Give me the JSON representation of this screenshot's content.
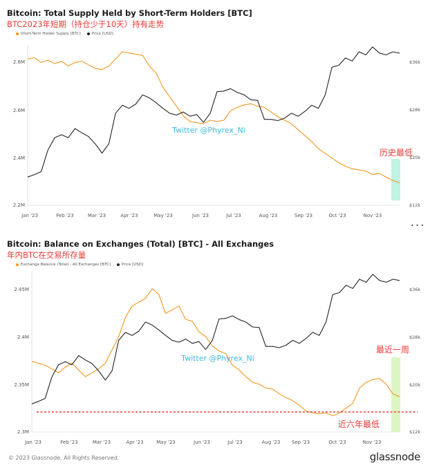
{
  "footer": {
    "copyright": "© 2023 Glassnode. All Rights Reserved.",
    "brand": "glassnode"
  },
  "watermark": "Twitter @Phyrex_Ni",
  "colors": {
    "orange": "#f0961e",
    "black": "#222222",
    "annot_red": "#e53935",
    "highlight": "#b7f0dd",
    "highlight2": "#d6f5b8",
    "watermark": "#3bb9e3"
  },
  "chart_data": [
    {
      "type": "line",
      "title": "Bitcoin: Total Supply Held by Short-Term Holders [BTC]",
      "subtitle": "BTC2023年短期（持仓少于10天）持有走势",
      "legend": [
        "Short-Term Holder Supply [BTC]",
        "Price [USD]"
      ],
      "x_ticks": [
        "Jan '23",
        "Feb '23",
        "Mar '23",
        "Apr '23",
        "May '23",
        "Jun '23",
        "Jul '23",
        "Aug '23",
        "Sep '23",
        "Oct '23",
        "Nov '23"
      ],
      "y_left_ticks": [
        "2.8M",
        "2.6M",
        "2.4M",
        "2.2M"
      ],
      "y_right_ticks": [
        "$36k",
        "$28k",
        "$20k",
        "$12k"
      ],
      "y_left_range": [
        2200000,
        2850000
      ],
      "y_right_range": [
        12000,
        37000
      ],
      "annotation": "历史最低",
      "series": [
        {
          "name": "Short-Term Holder Supply [BTC]",
          "color": "#f0961e",
          "points": [
            [
              0,
              2820000
            ],
            [
              6,
              2825000
            ],
            [
              12,
              2805000
            ],
            [
              18,
              2815000
            ],
            [
              24,
              2800000
            ],
            [
              30,
              2810000
            ],
            [
              36,
              2790000
            ],
            [
              42,
              2805000
            ],
            [
              48,
              2810000
            ],
            [
              54,
              2795000
            ],
            [
              60,
              2780000
            ],
            [
              66,
              2775000
            ],
            [
              72,
              2790000
            ],
            [
              78,
              2820000
            ],
            [
              84,
              2850000
            ],
            [
              90,
              2845000
            ],
            [
              96,
              2840000
            ],
            [
              102,
              2835000
            ],
            [
              108,
              2790000
            ],
            [
              114,
              2760000
            ],
            [
              120,
              2700000
            ],
            [
              126,
              2660000
            ],
            [
              132,
              2620000
            ],
            [
              138,
              2580000
            ],
            [
              144,
              2555000
            ],
            [
              150,
              2550000
            ],
            [
              156,
              2545000
            ],
            [
              162,
              2560000
            ],
            [
              168,
              2555000
            ],
            [
              174,
              2560000
            ],
            [
              180,
              2600000
            ],
            [
              186,
              2615000
            ],
            [
              192,
              2625000
            ],
            [
              198,
              2630000
            ],
            [
              204,
              2620000
            ],
            [
              210,
              2615000
            ],
            [
              216,
              2595000
            ],
            [
              222,
              2575000
            ],
            [
              228,
              2560000
            ],
            [
              234,
              2545000
            ],
            [
              240,
              2520000
            ],
            [
              246,
              2495000
            ],
            [
              252,
              2470000
            ],
            [
              258,
              2440000
            ],
            [
              264,
              2420000
            ],
            [
              270,
              2400000
            ],
            [
              276,
              2380000
            ],
            [
              282,
              2365000
            ],
            [
              288,
              2355000
            ],
            [
              294,
              2350000
            ],
            [
              300,
              2345000
            ],
            [
              306,
              2330000
            ],
            [
              312,
              2335000
            ],
            [
              318,
              2320000
            ],
            [
              324,
              2305000
            ],
            [
              330,
              2295000
            ]
          ]
        },
        {
          "name": "Price [USD]",
          "color": "#222222",
          "points": [
            [
              0,
              16600
            ],
            [
              6,
              17000
            ],
            [
              12,
              17500
            ],
            [
              18,
              21000
            ],
            [
              24,
              23000
            ],
            [
              30,
              23500
            ],
            [
              36,
              23000
            ],
            [
              42,
              24500
            ],
            [
              48,
              23800
            ],
            [
              54,
              23200
            ],
            [
              60,
              22000
            ],
            [
              66,
              20500
            ],
            [
              72,
              22000
            ],
            [
              78,
              27000
            ],
            [
              84,
              28300
            ],
            [
              90,
              27800
            ],
            [
              96,
              28500
            ],
            [
              102,
              30000
            ],
            [
              108,
              29500
            ],
            [
              114,
              28700
            ],
            [
              120,
              27800
            ],
            [
              126,
              27000
            ],
            [
              132,
              26700
            ],
            [
              138,
              27200
            ],
            [
              144,
              26500
            ],
            [
              150,
              26800
            ],
            [
              156,
              25500
            ],
            [
              162,
              27000
            ],
            [
              168,
              30500
            ],
            [
              174,
              30600
            ],
            [
              180,
              31000
            ],
            [
              186,
              30400
            ],
            [
              192,
              30000
            ],
            [
              198,
              29200
            ],
            [
              204,
              29100
            ],
            [
              210,
              26000
            ],
            [
              216,
              26000
            ],
            [
              222,
              25800
            ],
            [
              228,
              26200
            ],
            [
              234,
              27000
            ],
            [
              240,
              26500
            ],
            [
              246,
              27300
            ],
            [
              252,
              28300
            ],
            [
              258,
              27800
            ],
            [
              264,
              30000
            ],
            [
              270,
              34500
            ],
            [
              276,
              34800
            ],
            [
              282,
              36000
            ],
            [
              288,
              35500
            ],
            [
              294,
              37000
            ],
            [
              300,
              36500
            ],
            [
              306,
              37800
            ],
            [
              312,
              36800
            ],
            [
              318,
              36500
            ],
            [
              324,
              37000
            ],
            [
              330,
              36800
            ]
          ]
        }
      ]
    },
    {
      "type": "line",
      "title": "Bitcoin: Balance on Exchanges (Total) [BTC] - All Exchanges",
      "subtitle": "年内BTC在交易所存量",
      "legend": [
        "Exchange Balance (Total) - All Exchanges [BTC]",
        "Price [USD]"
      ],
      "x_ticks": [
        "Jan '23",
        "Feb '23",
        "Mar '23",
        "Apr '23",
        "May '23",
        "Jun '23",
        "Jul '23",
        "Aug '23",
        "Sep '23",
        "Oct '23",
        "Nov '23"
      ],
      "y_left_ticks": [
        "2.45M",
        "2.4M",
        "2.35M",
        "2.3M"
      ],
      "y_right_ticks": [
        "$36k",
        "$28k",
        "$20k",
        "$12k"
      ],
      "y_left_range": [
        2300000,
        2460000
      ],
      "y_right_range": [
        12000,
        37000
      ],
      "annotations": [
        "最近一周",
        "近六年最低"
      ],
      "series": [
        {
          "name": "Exchange Balance (Total) - All Exchanges [BTC]",
          "color": "#f0961e",
          "points": [
            [
              0,
              2374000
            ],
            [
              6,
              2372000
            ],
            [
              12,
              2370000
            ],
            [
              18,
              2366000
            ],
            [
              24,
              2362000
            ],
            [
              30,
              2368000
            ],
            [
              36,
              2372000
            ],
            [
              42,
              2365000
            ],
            [
              48,
              2358000
            ],
            [
              54,
              2362000
            ],
            [
              60,
              2366000
            ],
            [
              66,
              2372000
            ],
            [
              72,
              2386000
            ],
            [
              78,
              2400000
            ],
            [
              84,
              2420000
            ],
            [
              90,
              2432000
            ],
            [
              96,
              2436000
            ],
            [
              102,
              2440000
            ],
            [
              108,
              2450000
            ],
            [
              114,
              2444000
            ],
            [
              120,
              2424000
            ],
            [
              126,
              2428000
            ],
            [
              132,
              2432000
            ],
            [
              138,
              2418000
            ],
            [
              144,
              2416000
            ],
            [
              150,
              2405000
            ],
            [
              156,
              2400000
            ],
            [
              162,
              2390000
            ],
            [
              168,
              2385000
            ],
            [
              174,
              2382000
            ],
            [
              180,
              2370000
            ],
            [
              186,
              2365000
            ],
            [
              192,
              2358000
            ],
            [
              198,
              2352000
            ],
            [
              204,
              2350000
            ],
            [
              210,
              2346000
            ],
            [
              216,
              2345000
            ],
            [
              222,
              2340000
            ],
            [
              228,
              2336000
            ],
            [
              234,
              2333000
            ],
            [
              240,
              2328000
            ],
            [
              246,
              2322000
            ],
            [
              252,
              2320000
            ],
            [
              258,
              2319000
            ],
            [
              264,
              2320000
            ],
            [
              270,
              2317000
            ],
            [
              276,
              2320000
            ],
            [
              282,
              2325000
            ],
            [
              288,
              2330000
            ],
            [
              294,
              2346000
            ],
            [
              300,
              2352000
            ],
            [
              306,
              2355000
            ],
            [
              312,
              2356000
            ],
            [
              318,
              2350000
            ],
            [
              324,
              2340000
            ],
            [
              330,
              2337000
            ]
          ]
        },
        {
          "name": "Price [USD]",
          "color": "#222222",
          "points": [
            [
              0,
              16600
            ],
            [
              6,
              17000
            ],
            [
              12,
              17500
            ],
            [
              18,
              21000
            ],
            [
              24,
              23000
            ],
            [
              30,
              23500
            ],
            [
              36,
              23000
            ],
            [
              42,
              24500
            ],
            [
              48,
              23800
            ],
            [
              54,
              23200
            ],
            [
              60,
              22000
            ],
            [
              66,
              20500
            ],
            [
              72,
              22000
            ],
            [
              78,
              27000
            ],
            [
              84,
              28300
            ],
            [
              90,
              27800
            ],
            [
              96,
              28500
            ],
            [
              102,
              30000
            ],
            [
              108,
              29500
            ],
            [
              114,
              28700
            ],
            [
              120,
              27800
            ],
            [
              126,
              27000
            ],
            [
              132,
              26700
            ],
            [
              138,
              27200
            ],
            [
              144,
              26500
            ],
            [
              150,
              26800
            ],
            [
              156,
              25500
            ],
            [
              162,
              27000
            ],
            [
              168,
              30500
            ],
            [
              174,
              30600
            ],
            [
              180,
              31000
            ],
            [
              186,
              30400
            ],
            [
              192,
              30000
            ],
            [
              198,
              29200
            ],
            [
              204,
              29100
            ],
            [
              210,
              26000
            ],
            [
              216,
              26000
            ],
            [
              222,
              25800
            ],
            [
              228,
              26200
            ],
            [
              234,
              27000
            ],
            [
              240,
              26500
            ],
            [
              246,
              27300
            ],
            [
              252,
              28300
            ],
            [
              258,
              27800
            ],
            [
              264,
              30000
            ],
            [
              270,
              34500
            ],
            [
              276,
              34800
            ],
            [
              282,
              36000
            ],
            [
              288,
              35500
            ],
            [
              294,
              37000
            ],
            [
              300,
              36500
            ],
            [
              306,
              37800
            ],
            [
              312,
              36800
            ],
            [
              318,
              36500
            ],
            [
              324,
              37000
            ],
            [
              330,
              36800
            ]
          ]
        }
      ]
    }
  ]
}
